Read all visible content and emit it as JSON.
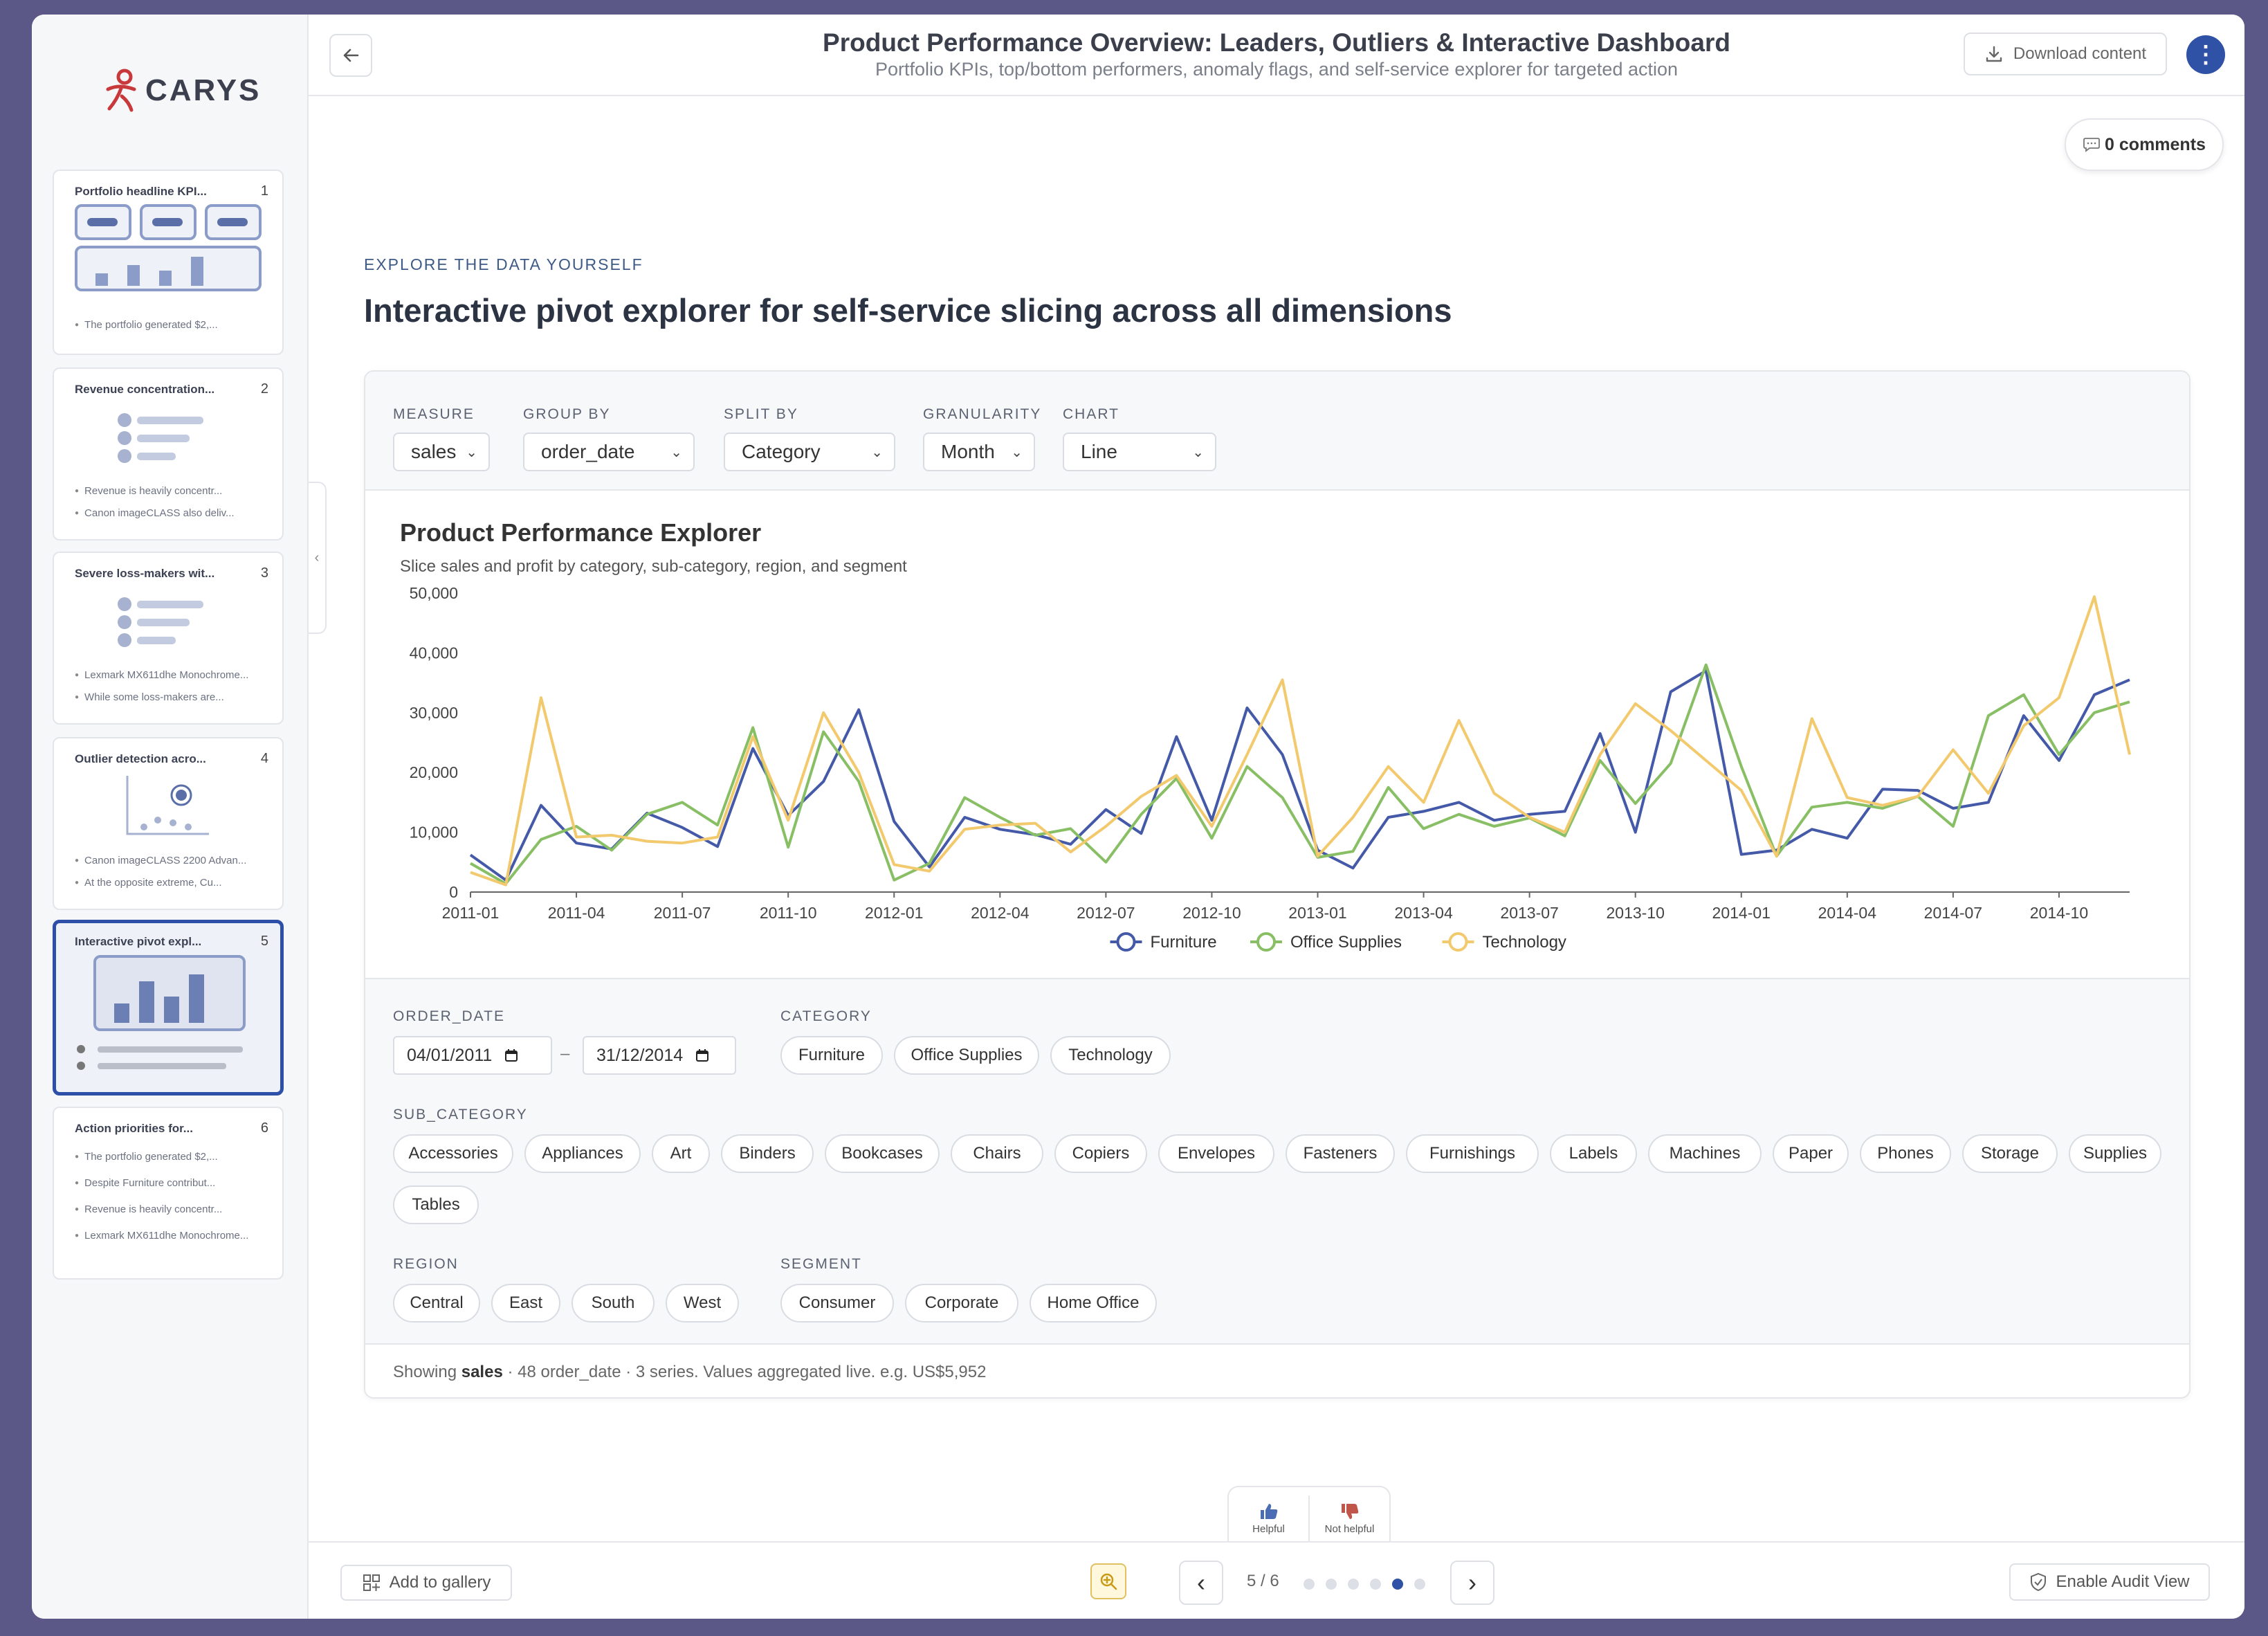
{
  "header": {
    "title": "Product Performance Overview: Leaders, Outliers & Interactive Dashboard",
    "subtitle": "Portfolio KPIs, top/bottom performers, anomaly flags, and self-service explorer for targeted action",
    "download_label": "Download content",
    "more_label": "⋮"
  },
  "brand": {
    "name": "CARYS"
  },
  "comments": {
    "label": "0 comments"
  },
  "sidebar": {
    "slides": [
      {
        "title": "Portfolio headline KPI...",
        "num": "1",
        "bullets": [
          "The portfolio generated $2,..."
        ]
      },
      {
        "title": "Revenue concentration...",
        "num": "2",
        "bullets": [
          "Revenue is heavily concentr...",
          "Canon imageCLASS also deliv..."
        ]
      },
      {
        "title": "Severe loss-makers wit...",
        "num": "3",
        "bullets": [
          "Lexmark MX611dhe Monochrome...",
          "While some loss-makers are..."
        ]
      },
      {
        "title": "Outlier detection acro...",
        "num": "4",
        "bullets": [
          "Canon imageCLASS 2200 Advan...",
          "At the opposite extreme, Cu..."
        ]
      },
      {
        "title": "Interactive pivot expl...",
        "num": "5",
        "bullets": []
      },
      {
        "title": "Action priorities for...",
        "num": "6",
        "bullets": [
          "The portfolio generated $2,...",
          "Despite Furniture contribut...",
          "Revenue is heavily concentr...",
          "Lexmark MX611dhe Monochrome..."
        ]
      }
    ]
  },
  "section": {
    "eyebrow": "EXPLORE THE DATA YOURSELF",
    "title": "Interactive pivot explorer for self-service slicing across all dimensions"
  },
  "controls": {
    "measure": {
      "label": "MEASURE",
      "value": "sales"
    },
    "group_by": {
      "label": "GROUP BY",
      "value": "order_date"
    },
    "split_by": {
      "label": "SPLIT BY",
      "value": "Category"
    },
    "granularity": {
      "label": "GRANULARITY",
      "value": "Month"
    },
    "chart": {
      "label": "CHART",
      "value": "Line"
    }
  },
  "chart_data": {
    "type": "line",
    "title": "Product Performance Explorer",
    "subtitle": "Slice sales and profit by category, sub-category, region, and segment",
    "xlabel": "",
    "ylabel": "",
    "ylim": [
      0,
      50000
    ],
    "yticks": [
      "0",
      "10,000",
      "20,000",
      "30,000",
      "40,000",
      "50,000"
    ],
    "xticks": [
      "2011-01",
      "2011-04",
      "2011-07",
      "2011-10",
      "2012-01",
      "2012-04",
      "2012-07",
      "2012-10",
      "2013-01",
      "2013-04",
      "2013-07",
      "2013-10",
      "2014-01",
      "2014-04",
      "2014-07",
      "2014-10"
    ],
    "legend": "bottom",
    "series": [
      {
        "name": "Furniture",
        "color": "#4459a8",
        "values": [
          6200,
          2000,
          14500,
          8200,
          7200,
          13200,
          10800,
          7600,
          24000,
          12800,
          18500,
          30500,
          11800,
          4200,
          12500,
          10500,
          9600,
          8000,
          13800,
          9800,
          26000,
          12000,
          30800,
          23000,
          7000,
          4000,
          12500,
          13500,
          15000,
          12000,
          13000,
          13500,
          26500,
          10000,
          33500,
          37000,
          6300,
          7000,
          10500,
          9000,
          17200,
          17000,
          14000,
          15000,
          29500,
          22000,
          33000,
          35500
        ]
      },
      {
        "name": "Office Supplies",
        "color": "#88bf65",
        "values": [
          4800,
          1400,
          8800,
          11000,
          7000,
          13000,
          15000,
          11200,
          27500,
          7500,
          26800,
          18500,
          2000,
          4800,
          15800,
          12500,
          9500,
          10600,
          5000,
          13000,
          19000,
          9000,
          21000,
          15800,
          5800,
          6800,
          17500,
          10600,
          13000,
          11000,
          12400,
          9400,
          22000,
          14800,
          21500,
          38000,
          21000,
          6000,
          14200,
          15000,
          14000,
          16000,
          11000,
          29500,
          33000,
          23000,
          30000,
          31800
        ]
      },
      {
        "name": "Technology",
        "color": "#f2c96d",
        "values": [
          3300,
          1200,
          32500,
          9200,
          9500,
          8500,
          8200,
          9200,
          26000,
          12000,
          30000,
          20000,
          4600,
          3500,
          10500,
          11200,
          11500,
          6700,
          11000,
          16000,
          19500,
          11000,
          23000,
          35500,
          6000,
          12500,
          21000,
          15000,
          28700,
          16500,
          12500,
          10000,
          23000,
          31500,
          27000,
          22000,
          17000,
          6000,
          29000,
          15800,
          14500,
          16000,
          23800,
          16500,
          27800,
          32500,
          49400,
          23000
        ]
      }
    ]
  },
  "filters": {
    "order_date": {
      "label": "ORDER_DATE",
      "from": "04/01/2011",
      "to": "31/12/2014",
      "sep": "–"
    },
    "category": {
      "label": "CATEGORY",
      "items": [
        "Furniture",
        "Office Supplies",
        "Technology"
      ]
    },
    "sub_category": {
      "label": "SUB_CATEGORY",
      "items": [
        "Accessories",
        "Appliances",
        "Art",
        "Binders",
        "Bookcases",
        "Chairs",
        "Copiers",
        "Envelopes",
        "Fasteners",
        "Furnishings",
        "Labels",
        "Machines",
        "Paper",
        "Phones",
        "Storage",
        "Supplies",
        "Tables"
      ]
    },
    "region": {
      "label": "REGION",
      "items": [
        "Central",
        "East",
        "South",
        "West"
      ]
    },
    "segment": {
      "label": "SEGMENT",
      "items": [
        "Consumer",
        "Corporate",
        "Home Office"
      ]
    }
  },
  "footnote": {
    "pre": "Showing ",
    "measure": "sales",
    "post": " · 48 order_date · 3 series. Values aggregated live. e.g. US$5,952"
  },
  "feedback": {
    "helpful": "Helpful",
    "not_helpful": "Not helpful"
  },
  "bottom": {
    "gallery_label": "Add to gallery",
    "pager": "5 / 6",
    "total_slides": 6,
    "current_slide": 5,
    "audit_label": "Enable Audit View",
    "prev": "‹",
    "next": "›"
  }
}
